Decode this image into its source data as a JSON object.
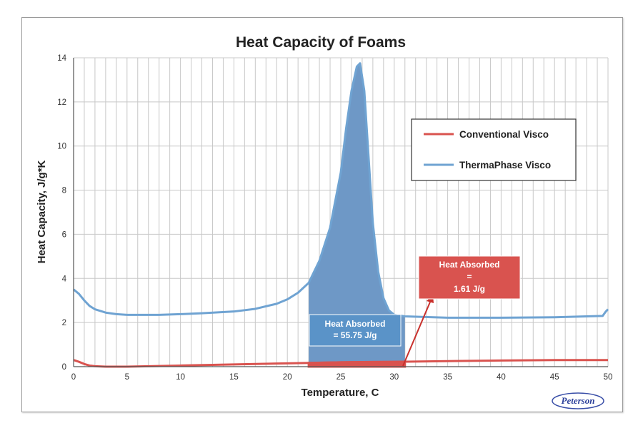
{
  "chart_data": {
    "type": "line",
    "title": "Heat Capacity of Foams",
    "xlabel": "Temperature, C",
    "ylabel": "Heat Capacity, J/g*K",
    "xlim": [
      0,
      50
    ],
    "ylim": [
      0,
      14
    ],
    "x_ticks": [
      0,
      5,
      10,
      15,
      20,
      25,
      30,
      35,
      40,
      45,
      50
    ],
    "y_ticks": [
      0,
      2,
      4,
      6,
      8,
      10,
      12,
      14
    ],
    "grid": true,
    "legend_position": "upper-right",
    "series": [
      {
        "name": "Conventional Visco",
        "color": "#d9534f",
        "points": [
          [
            0,
            0.3
          ],
          [
            0.5,
            0.22
          ],
          [
            1,
            0.12
          ],
          [
            1.5,
            0.05
          ],
          [
            2,
            0.02
          ],
          [
            3,
            0.0
          ],
          [
            5,
            0.0
          ],
          [
            10,
            0.05
          ],
          [
            15,
            0.1
          ],
          [
            20,
            0.15
          ],
          [
            25,
            0.2
          ],
          [
            30,
            0.22
          ],
          [
            35,
            0.25
          ],
          [
            40,
            0.28
          ],
          [
            45,
            0.3
          ],
          [
            50,
            0.3
          ]
        ]
      },
      {
        "name": "ThermaPhase Visco",
        "color": "#6fa3d2",
        "points": [
          [
            0,
            3.5
          ],
          [
            0.5,
            3.3
          ],
          [
            1,
            3.0
          ],
          [
            1.5,
            2.75
          ],
          [
            2,
            2.6
          ],
          [
            3,
            2.45
          ],
          [
            4,
            2.38
          ],
          [
            5,
            2.35
          ],
          [
            8,
            2.35
          ],
          [
            10,
            2.38
          ],
          [
            12,
            2.42
          ],
          [
            15,
            2.5
          ],
          [
            17,
            2.62
          ],
          [
            19,
            2.85
          ],
          [
            20,
            3.05
          ],
          [
            21,
            3.35
          ],
          [
            22,
            3.8
          ],
          [
            23,
            4.8
          ],
          [
            24,
            6.3
          ],
          [
            25,
            8.8
          ],
          [
            25.5,
            10.8
          ],
          [
            26,
            12.5
          ],
          [
            26.5,
            13.6
          ],
          [
            26.8,
            13.75
          ],
          [
            27.2,
            12.5
          ],
          [
            27.6,
            9.5
          ],
          [
            28,
            6.5
          ],
          [
            28.5,
            4.3
          ],
          [
            29,
            3.1
          ],
          [
            29.5,
            2.55
          ],
          [
            30,
            2.35
          ],
          [
            31,
            2.28
          ],
          [
            35,
            2.22
          ],
          [
            40,
            2.22
          ],
          [
            45,
            2.24
          ],
          [
            49.5,
            2.3
          ],
          [
            49.8,
            2.5
          ],
          [
            50,
            2.6
          ]
        ]
      }
    ],
    "shaded_regions": [
      {
        "series": "ThermaPhase Visco",
        "x_from": 22,
        "x_to": 31,
        "color": "#6e98c6"
      },
      {
        "series": "Conventional Visco",
        "x_from": 22,
        "x_to": 31,
        "color": "#d9534f"
      }
    ],
    "annotations": [
      {
        "lines": [
          "Heat Absorbed",
          "= 55.75 J/g"
        ],
        "color": "#5a93c8"
      },
      {
        "lines": [
          "Heat Absorbed",
          "=",
          "1.61 J/g"
        ],
        "color": "#d9534f"
      }
    ]
  },
  "logo": {
    "text": "Peterson"
  }
}
